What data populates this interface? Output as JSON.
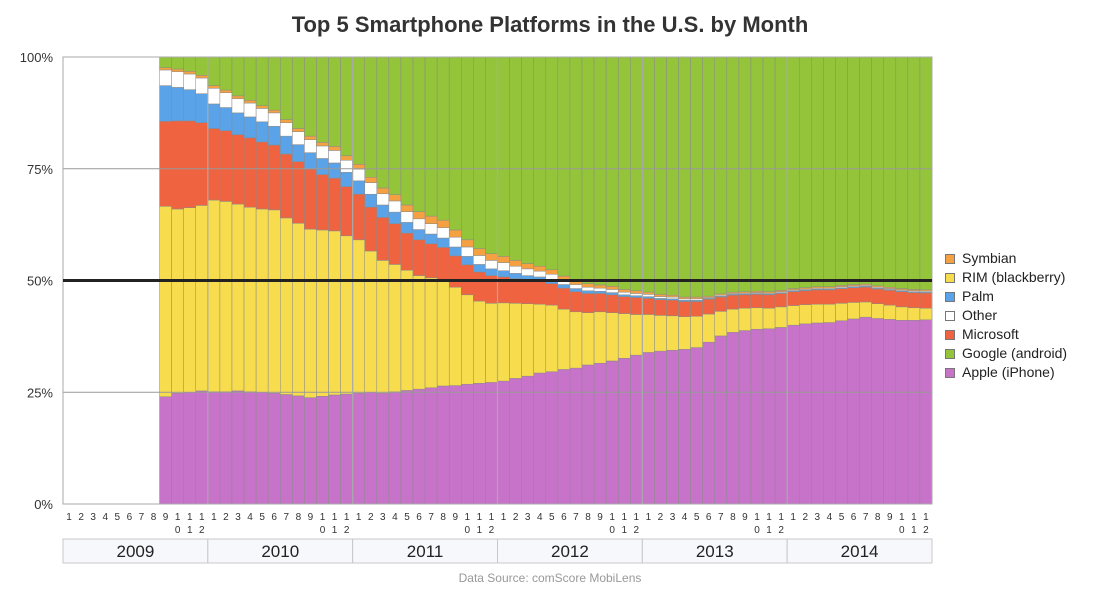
{
  "chart_data": {
    "type": "bar",
    "stacked": true,
    "normalized": true,
    "title": "Top 5 Smartphone Platforms in the U.S. by Month",
    "source": "Data Source: comScore MobiLens",
    "ylim": [
      0,
      100
    ],
    "yticks": [
      0,
      25,
      50,
      75,
      100
    ],
    "ytick_labels": [
      "0%",
      "25%",
      "50%",
      "75%",
      "100%"
    ],
    "reference_line": 50,
    "legend_position": "right",
    "years": [
      "2009",
      "2010",
      "2011",
      "2012",
      "2013",
      "2014"
    ],
    "month_labels": [
      "1",
      "2",
      "3",
      "4",
      "5",
      "6",
      "7",
      "8",
      "9",
      "10",
      "11",
      "12"
    ],
    "period": {
      "start": "2009-01",
      "end": "2014-12"
    },
    "data_start": "2009-09",
    "stack_order": [
      "Apple (iPhone)",
      "RIM (blackberry)",
      "Microsoft",
      "Palm",
      "Other",
      "Symbian",
      "Google (android)"
    ],
    "legend": [
      {
        "name": "Symbian",
        "color": "#f5a142"
      },
      {
        "name": "RIM (blackberry)",
        "color": "#f7dc4d"
      },
      {
        "name": "Palm",
        "color": "#5aa3e8"
      },
      {
        "name": "Other",
        "color": "#ffffff"
      },
      {
        "name": "Microsoft",
        "color": "#ef6340"
      },
      {
        "name": "Google (android)",
        "color": "#93c43a"
      },
      {
        "name": "Apple (iPhone)",
        "color": "#c773c9"
      }
    ],
    "series": [
      {
        "name": "Apple (iPhone)",
        "color": "#c773c9",
        "values": [
          24.0,
          24.8,
          25.0,
          25.3,
          25.1,
          25.1,
          25.3,
          25.1,
          25.0,
          24.8,
          24.5,
          24.2,
          23.8,
          24.1,
          24.4,
          24.6,
          24.8,
          25.0,
          24.8,
          25.1,
          25.4,
          25.7,
          26.0,
          26.4,
          26.5,
          26.8,
          27.0,
          27.2,
          27.5,
          28.1,
          28.6,
          29.3,
          29.6,
          30.1,
          30.4,
          31.1,
          31.5,
          32.0,
          32.6,
          33.3,
          33.9,
          34.2,
          34.4,
          34.6,
          35.0,
          36.2,
          37.6,
          38.4,
          38.8,
          39.1,
          39.2,
          39.5,
          40.0,
          40.3,
          40.5,
          40.6,
          41.0,
          41.4,
          41.8,
          41.5,
          41.3,
          41.1,
          41.1,
          41.2
        ]
      },
      {
        "name": "RIM (blackberry)",
        "color": "#f7dc4d",
        "values": [
          42.6,
          41.2,
          41.3,
          41.5,
          42.9,
          42.6,
          41.8,
          41.3,
          41.0,
          41.0,
          39.5,
          38.6,
          37.7,
          37.2,
          36.7,
          35.4,
          34.3,
          31.6,
          29.7,
          28.5,
          26.9,
          25.4,
          24.6,
          23.7,
          22.0,
          20.0,
          18.4,
          17.7,
          17.5,
          16.8,
          16.2,
          15.4,
          14.9,
          13.5,
          12.6,
          11.7,
          11.5,
          10.8,
          10.0,
          9.1,
          8.5,
          8.0,
          7.7,
          7.3,
          7.0,
          6.3,
          5.5,
          5.2,
          5.0,
          4.8,
          4.6,
          4.6,
          4.4,
          4.3,
          4.2,
          4.1,
          3.9,
          3.7,
          3.4,
          3.3,
          3.2,
          3.0,
          2.8,
          2.6
        ]
      },
      {
        "name": "Microsoft",
        "color": "#ef6340",
        "values": [
          19.0,
          19.7,
          19.4,
          18.5,
          16.0,
          15.8,
          15.5,
          15.5,
          15.0,
          14.5,
          14.3,
          13.8,
          13.4,
          12.4,
          11.8,
          11.0,
          10.2,
          9.8,
          9.6,
          9.1,
          8.3,
          8.0,
          7.6,
          7.3,
          7.0,
          6.7,
          6.5,
          6.2,
          5.8,
          5.5,
          5.2,
          5.1,
          4.8,
          4.7,
          4.5,
          4.3,
          4.1,
          4.0,
          3.8,
          3.8,
          3.6,
          3.5,
          3.5,
          3.4,
          3.3,
          3.3,
          3.2,
          3.1,
          3.0,
          3.0,
          3.0,
          3.0,
          3.1,
          3.1,
          3.2,
          3.2,
          3.3,
          3.3,
          3.3,
          3.3,
          3.3,
          3.4,
          3.4,
          3.4
        ]
      },
      {
        "name": "Palm",
        "color": "#5aa3e8",
        "values": [
          8.0,
          7.5,
          7.0,
          6.5,
          5.5,
          5.2,
          4.9,
          4.7,
          4.5,
          4.2,
          4.0,
          3.8,
          3.7,
          3.6,
          3.4,
          3.2,
          3.0,
          2.9,
          2.8,
          2.6,
          2.4,
          2.3,
          2.2,
          2.1,
          2.0,
          1.9,
          1.7,
          1.5,
          1.4,
          1.2,
          1.1,
          1.0,
          0.9,
          0.8,
          0.7,
          0.6,
          0.5,
          0.5,
          0.4,
          0.4,
          0.4,
          0.3,
          0.3,
          0.3,
          0.3,
          0.2,
          0.2,
          0.2,
          0.2,
          0.2,
          0.2,
          0.2,
          0.2,
          0.2,
          0.2,
          0.2,
          0.2,
          0.2,
          0.2,
          0.2,
          0.2,
          0.2,
          0.2,
          0.2
        ]
      },
      {
        "name": "Other",
        "color": "#ffffff",
        "values": [
          3.5,
          3.5,
          3.5,
          3.5,
          3.5,
          3.3,
          3.2,
          3.1,
          3.0,
          3.0,
          3.0,
          2.9,
          2.9,
          2.8,
          2.8,
          2.7,
          2.6,
          2.6,
          2.5,
          2.5,
          2.4,
          2.4,
          2.3,
          2.3,
          2.2,
          2.1,
          2.0,
          1.9,
          1.8,
          1.6,
          1.5,
          1.3,
          1.2,
          1.0,
          0.9,
          0.8,
          0.7,
          0.7,
          0.6,
          0.5,
          0.5,
          0.4,
          0.4,
          0.3,
          0.3,
          0.2,
          0.2,
          0.2,
          0.2,
          0.2,
          0.2,
          0.2,
          0.2,
          0.2,
          0.2,
          0.2,
          0.2,
          0.2,
          0.2,
          0.2,
          0.2,
          0.2,
          0.2,
          0.2
        ]
      },
      {
        "name": "Symbian",
        "color": "#f5a142",
        "values": [
          0.5,
          0.6,
          0.6,
          0.6,
          0.6,
          0.6,
          0.6,
          0.6,
          0.6,
          0.6,
          0.7,
          0.7,
          0.8,
          0.8,
          0.9,
          1.0,
          1.1,
          1.2,
          1.3,
          1.4,
          1.5,
          1.6,
          1.7,
          1.7,
          1.6,
          1.6,
          1.5,
          1.5,
          1.4,
          1.3,
          1.2,
          1.1,
          1.0,
          0.9,
          0.8,
          0.8,
          0.7,
          0.7,
          0.6,
          0.6,
          0.5,
          0.5,
          0.4,
          0.4,
          0.4,
          0.3,
          0.3,
          0.3,
          0.3,
          0.3,
          0.3,
          0.3,
          0.3,
          0.3,
          0.3,
          0.3,
          0.3,
          0.3,
          0.3,
          0.3,
          0.3,
          0.3,
          0.3,
          0.3
        ]
      },
      {
        "name": "Google (android)",
        "color": "#93c43a",
        "values": [
          2.4,
          2.7,
          3.2,
          4.1,
          6.4,
          7.4,
          8.7,
          9.7,
          10.9,
          11.9,
          14.0,
          16.0,
          17.7,
          19.1,
          20.0,
          22.1,
          24.0,
          26.9,
          29.3,
          30.8,
          33.1,
          34.6,
          35.6,
          36.5,
          38.7,
          40.9,
          42.9,
          44.0,
          44.6,
          45.5,
          46.2,
          46.8,
          47.6,
          49.0,
          50.1,
          50.7,
          51.0,
          51.3,
          52.0,
          52.3,
          52.6,
          53.1,
          53.3,
          53.7,
          53.7,
          53.5,
          53.0,
          52.6,
          52.5,
          52.4,
          52.5,
          52.2,
          51.8,
          51.6,
          51.4,
          51.4,
          51.1,
          50.9,
          50.8,
          51.2,
          51.5,
          51.8,
          52.0,
          52.1
        ]
      }
    ]
  }
}
